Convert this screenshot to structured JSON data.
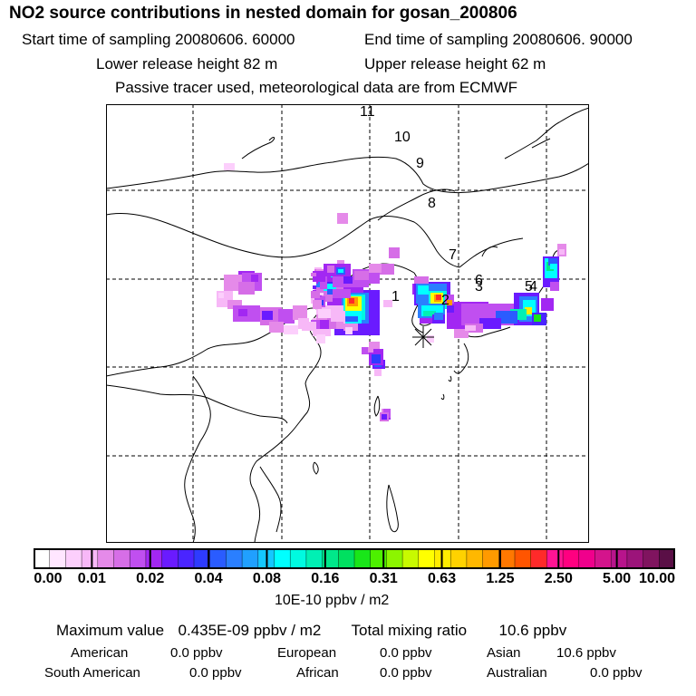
{
  "header": {
    "title": "NO2 source contributions in nested domain for gosan_200806",
    "start_time": "Start time of sampling 20080606. 60000",
    "end_time": "End time of sampling 20080606. 90000",
    "lower_height": "Lower release height   82 m",
    "upper_height": "Upper release height   62 m",
    "note": "Passive tracer used, meteorological data are from ECMWF"
  },
  "map": {
    "trajectory_labels": [
      "1",
      "2",
      "3",
      "4",
      "5",
      "6",
      "7",
      "8",
      "9",
      "10",
      "11"
    ],
    "receptor_marker": "star"
  },
  "colorbar": {
    "ticks": [
      "0.00",
      "0.01",
      "0.02",
      "0.04",
      "0.08",
      "0.16",
      "0.31",
      "0.63",
      "1.25",
      "2.50",
      "5.00",
      "10.00"
    ],
    "units": "10E-10 ppbv / m2",
    "colors": [
      "#ffffff",
      "#ffe6ff",
      "#fccffc",
      "#f7b8f7",
      "#e58ae9",
      "#d66ee7",
      "#c04ff0",
      "#a227f2",
      "#6a1bff",
      "#4a25ff",
      "#2e3bff",
      "#2a5cff",
      "#2a7fff",
      "#20a0ff",
      "#14c8ff",
      "#00ffff",
      "#00fae0",
      "#00f0b4",
      "#00e88a",
      "#00e060",
      "#19e619",
      "#4df000",
      "#8cf500",
      "#c8fa00",
      "#ffff00",
      "#ffec00",
      "#ffd200",
      "#ffb800",
      "#ff9a00",
      "#ff7800",
      "#ff5500",
      "#ff2a2a",
      "#ff1493",
      "#ff0080",
      "#f0008c",
      "#d4148c",
      "#b8148c",
      "#9c147a",
      "#80145f",
      "#5a0f46"
    ]
  },
  "summary": {
    "max_label": "Maximum value",
    "max_value": "0.435E-09 ppbv / m2",
    "total_label": "Total mixing ratio",
    "total_value": "10.6 ppbv",
    "sources": [
      {
        "name": "American",
        "value": "0.0 ppbv"
      },
      {
        "name": "European",
        "value": "0.0 ppbv"
      },
      {
        "name": "Asian",
        "value": "10.6 ppbv"
      },
      {
        "name": "South American",
        "value": "0.0 ppbv"
      },
      {
        "name": "African",
        "value": "0.0 ppbv"
      },
      {
        "name": "Australian",
        "value": "0.0 ppbv"
      }
    ]
  }
}
